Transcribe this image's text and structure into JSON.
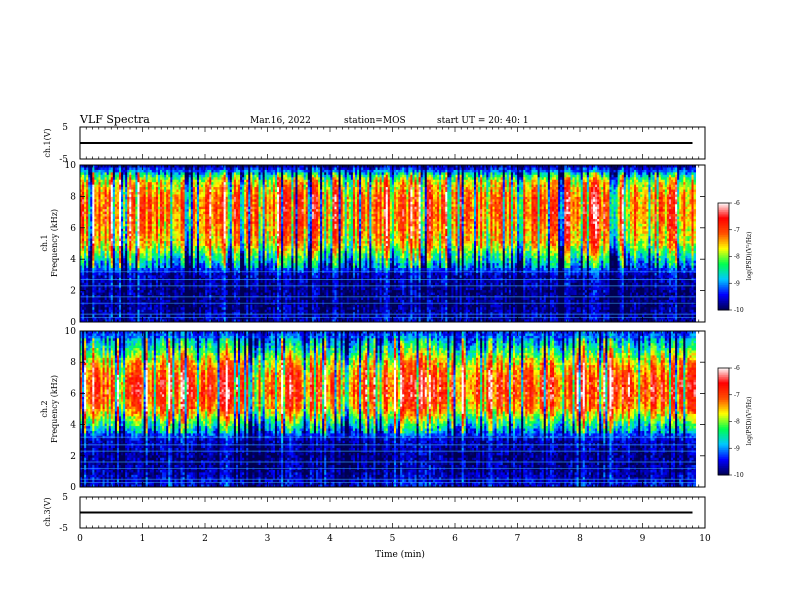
{
  "header": {
    "title": "VLF Spectra",
    "date": "Mar.16, 2022",
    "station": "station=MOS",
    "start_ut": "start  UT =   20: 40: 1"
  },
  "colors": {
    "colormap": [
      "#000050",
      "#0000ff",
      "#00c8ff",
      "#00ff50",
      "#ffff00",
      "#ff5000",
      "#ff0000",
      "#ffffff"
    ],
    "trace": "#000000",
    "axes": "#000000"
  },
  "chart_data": [
    {
      "type": "line",
      "name": "ch1-waveform",
      "ylabel": "ch.1(V)",
      "ylim": [
        -5,
        5
      ],
      "yticks": [
        "5",
        "-5"
      ],
      "level": 0,
      "xlim": [
        0,
        10
      ]
    },
    {
      "type": "heatmap",
      "name": "ch1-spectrogram",
      "ylabel": "ch.1",
      "ylabel2": "Frequency (kHz)",
      "ylim": [
        0,
        10
      ],
      "yticks": [
        "0",
        "2",
        "4",
        "6",
        "8",
        "10"
      ],
      "xlim": [
        0,
        10
      ],
      "data_end_min": 9.85,
      "colorbar": {
        "ticks": [
          "-6",
          "-7",
          "-8",
          "-9",
          "-10"
        ],
        "range": [
          -10,
          -6
        ],
        "label": "log(PSD)(V²/Hz)"
      },
      "band_profile": [
        {
          "f_khz": 0.0,
          "level": -9.6
        },
        {
          "f_khz": 1.0,
          "level": -9.8
        },
        {
          "f_khz": 2.0,
          "level": -9.8
        },
        {
          "f_khz": 3.0,
          "level": -9.6
        },
        {
          "f_khz": 4.0,
          "level": -8.6
        },
        {
          "f_khz": 5.0,
          "level": -7.6
        },
        {
          "f_khz": 6.0,
          "level": -7.3
        },
        {
          "f_khz": 7.0,
          "level": -7.1
        },
        {
          "f_khz": 8.0,
          "level": -7.2
        },
        {
          "f_khz": 9.0,
          "level": -7.8
        },
        {
          "f_khz": 10.0,
          "level": -9.9
        }
      ]
    },
    {
      "type": "heatmap",
      "name": "ch2-spectrogram",
      "ylabel": "ch.2",
      "ylabel2": "Frequency (kHz)",
      "ylim": [
        0,
        10
      ],
      "yticks": [
        "0",
        "2",
        "4",
        "6",
        "8",
        "10"
      ],
      "xlim": [
        0,
        10
      ],
      "data_end_min": 9.85,
      "colorbar": {
        "ticks": [
          "-6",
          "-7",
          "-8",
          "-9",
          "-10"
        ],
        "range": [
          -10,
          -6
        ],
        "label": "log(PSD)(V²/Hz)"
      },
      "band_profile": [
        {
          "f_khz": 0.0,
          "level": -9.5
        },
        {
          "f_khz": 1.0,
          "level": -9.7
        },
        {
          "f_khz": 2.0,
          "level": -9.8
        },
        {
          "f_khz": 3.0,
          "level": -9.6
        },
        {
          "f_khz": 4.0,
          "level": -8.5
        },
        {
          "f_khz": 5.0,
          "level": -7.3
        },
        {
          "f_khz": 6.0,
          "level": -6.9
        },
        {
          "f_khz": 7.0,
          "level": -7.0
        },
        {
          "f_khz": 8.0,
          "level": -7.6
        },
        {
          "f_khz": 9.0,
          "level": -8.6
        },
        {
          "f_khz": 10.0,
          "level": -9.4
        }
      ]
    },
    {
      "type": "line",
      "name": "ch3-waveform",
      "ylabel": "ch.3(V)",
      "ylim": [
        -5,
        5
      ],
      "yticks": [
        "5",
        "-5"
      ],
      "level": 0,
      "xlim": [
        0,
        10
      ],
      "xlabel": "Time  (min)",
      "xticks": [
        "0",
        "1",
        "2",
        "3",
        "4",
        "5",
        "6",
        "7",
        "8",
        "9",
        "10"
      ]
    }
  ]
}
